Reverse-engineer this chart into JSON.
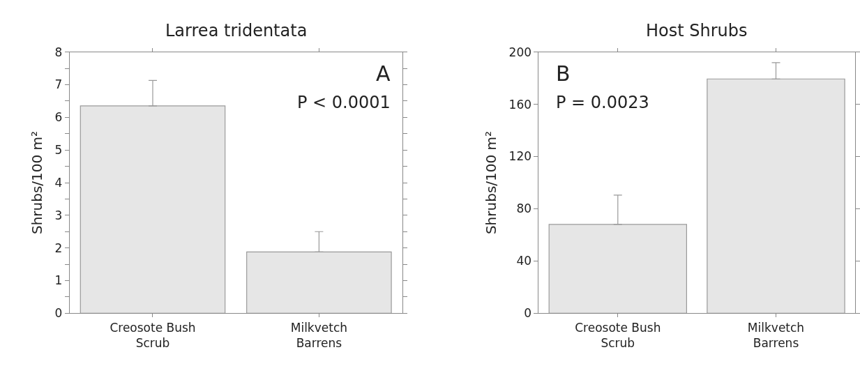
{
  "chart_data": [
    {
      "type": "bar",
      "title": "Larrea tridentata",
      "ylabel": "Shrubs/100 m²",
      "categories": [
        "Creosote Bush Scrub",
        "Milkvetch Barrens"
      ],
      "values": [
        6.35,
        1.88
      ],
      "errors": [
        [
          6.35,
          7.13
        ],
        [
          1.88,
          2.5
        ]
      ],
      "color": "#e6e6e6",
      "ylim": [
        0,
        8
      ],
      "yticks": [
        0,
        {
          "value": 0.5,
          "label": null
        },
        1,
        {
          "value": 1.5,
          "label": null
        },
        2,
        {
          "value": 2.5,
          "label": null
        },
        3,
        {
          "value": 3.5,
          "label": null
        },
        4,
        {
          "value": 4.5,
          "label": null
        },
        5,
        {
          "value": 5.5,
          "label": null
        },
        6,
        {
          "value": 6.5,
          "label": null
        },
        7,
        {
          "value": 7.5,
          "label": null
        },
        8
      ],
      "annotations": [
        "A",
        "P < 0.0001"
      ]
    },
    {
      "type": "bar",
      "title": "Host Shrubs",
      "ylabel": "Shrubs/100 m²",
      "categories": [
        "Creosote Bush Scrub",
        "Milkvetch Barrens"
      ],
      "values": [
        68,
        179.4
      ],
      "errors": [
        [
          68,
          90.5
        ],
        [
          179.4,
          191.9
        ]
      ],
      "color": "#e6e6e6",
      "ylim": [
        0,
        200
      ],
      "yticks": [
        0,
        40,
        80,
        120,
        160,
        200
      ],
      "annotations": [
        "B",
        "P = 0.0023"
      ]
    }
  ]
}
